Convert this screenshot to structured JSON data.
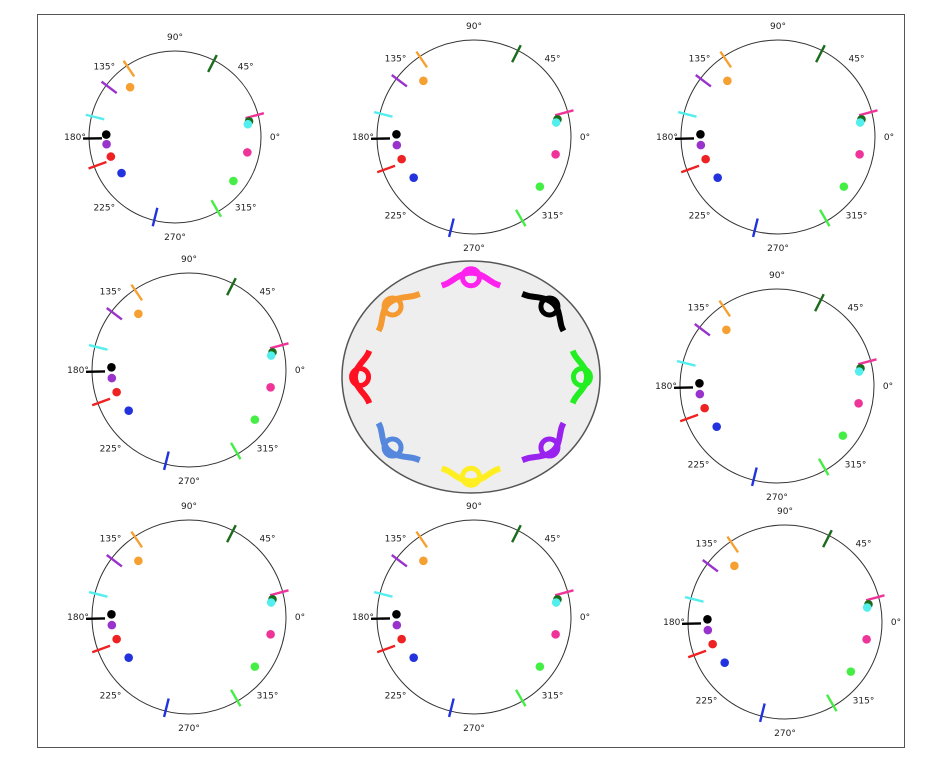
{
  "angle_labels": [
    "0°",
    "45°",
    "90°",
    "135°",
    "180°",
    "225°",
    "270°",
    "315°"
  ],
  "polar_plots": [
    {
      "id": "top-left",
      "ticks": [
        {
          "color": "#1a6b1a",
          "angle": 63
        },
        {
          "color": "#f5a030",
          "angle": 124
        },
        {
          "color": "#9933cc",
          "angle": 143
        },
        {
          "color": "#55eeee",
          "angle": 166
        },
        {
          "color": "#000000",
          "angle": 181
        },
        {
          "color": "#ee2222",
          "angle": 200
        },
        {
          "color": "#2233dd",
          "angle": 256
        },
        {
          "color": "#44ee44",
          "angle": 300
        },
        {
          "color": "#ee3399",
          "angle": 15
        }
      ],
      "dots": [
        {
          "color": "#1a6b1a",
          "angle": 12,
          "r": 0.88
        },
        {
          "color": "#55eeee",
          "angle": 10,
          "r": 0.86
        },
        {
          "color": "#ee3399",
          "angle": 348,
          "r": 0.86
        },
        {
          "color": "#44ee44",
          "angle": 323,
          "r": 0.85
        },
        {
          "color": "#2233dd",
          "angle": 214,
          "r": 0.75
        },
        {
          "color": "#ee2222",
          "angle": 197,
          "r": 0.78
        },
        {
          "color": "#9933cc",
          "angle": 186,
          "r": 0.8
        },
        {
          "color": "#000000",
          "angle": 178,
          "r": 0.8
        },
        {
          "color": "#f5a030",
          "angle": 132,
          "r": 0.78
        }
      ]
    },
    {
      "id": "top-middle",
      "ticks": [
        {
          "color": "#1a6b1a",
          "angle": 63
        },
        {
          "color": "#f5a030",
          "angle": 124
        },
        {
          "color": "#9933cc",
          "angle": 143
        },
        {
          "color": "#55eeee",
          "angle": 166
        },
        {
          "color": "#000000",
          "angle": 181
        },
        {
          "color": "#ee2222",
          "angle": 200
        },
        {
          "color": "#2233dd",
          "angle": 256
        },
        {
          "color": "#44ee44",
          "angle": 300
        },
        {
          "color": "#ee3399",
          "angle": 15
        }
      ],
      "dots": [
        {
          "color": "#1a6b1a",
          "angle": 12,
          "r": 0.88
        },
        {
          "color": "#55eeee",
          "angle": 10,
          "r": 0.86
        },
        {
          "color": "#ee3399",
          "angle": 348,
          "r": 0.86
        },
        {
          "color": "#44ee44",
          "angle": 323,
          "r": 0.85
        },
        {
          "color": "#2233dd",
          "angle": 214,
          "r": 0.75
        },
        {
          "color": "#ee2222",
          "angle": 197,
          "r": 0.78
        },
        {
          "color": "#9933cc",
          "angle": 186,
          "r": 0.8
        },
        {
          "color": "#000000",
          "angle": 178,
          "r": 0.8
        },
        {
          "color": "#f5a030",
          "angle": 132,
          "r": 0.78
        }
      ]
    },
    {
      "id": "top-right",
      "ticks": [
        {
          "color": "#1a6b1a",
          "angle": 63
        },
        {
          "color": "#f5a030",
          "angle": 124
        },
        {
          "color": "#9933cc",
          "angle": 143
        },
        {
          "color": "#55eeee",
          "angle": 166
        },
        {
          "color": "#000000",
          "angle": 181
        },
        {
          "color": "#ee2222",
          "angle": 200
        },
        {
          "color": "#2233dd",
          "angle": 256
        },
        {
          "color": "#44ee44",
          "angle": 300
        },
        {
          "color": "#ee3399",
          "angle": 15
        }
      ],
      "dots": [
        {
          "color": "#1a6b1a",
          "angle": 12,
          "r": 0.88
        },
        {
          "color": "#55eeee",
          "angle": 10,
          "r": 0.86
        },
        {
          "color": "#ee3399",
          "angle": 348,
          "r": 0.86
        },
        {
          "color": "#44ee44",
          "angle": 323,
          "r": 0.85
        },
        {
          "color": "#2233dd",
          "angle": 214,
          "r": 0.75
        },
        {
          "color": "#ee2222",
          "angle": 197,
          "r": 0.78
        },
        {
          "color": "#9933cc",
          "angle": 186,
          "r": 0.8
        },
        {
          "color": "#000000",
          "angle": 178,
          "r": 0.8
        },
        {
          "color": "#f5a030",
          "angle": 132,
          "r": 0.78
        }
      ]
    },
    {
      "id": "middle-left",
      "ticks": [
        {
          "color": "#1a6b1a",
          "angle": 63
        },
        {
          "color": "#f5a030",
          "angle": 124
        },
        {
          "color": "#9933cc",
          "angle": 143
        },
        {
          "color": "#55eeee",
          "angle": 166
        },
        {
          "color": "#000000",
          "angle": 181
        },
        {
          "color": "#ee2222",
          "angle": 200
        },
        {
          "color": "#2233dd",
          "angle": 256
        },
        {
          "color": "#44ee44",
          "angle": 300
        },
        {
          "color": "#ee3399",
          "angle": 15
        }
      ],
      "dots": [
        {
          "color": "#1a6b1a",
          "angle": 12,
          "r": 0.88
        },
        {
          "color": "#55eeee",
          "angle": 10,
          "r": 0.86
        },
        {
          "color": "#ee3399",
          "angle": 348,
          "r": 0.86
        },
        {
          "color": "#44ee44",
          "angle": 323,
          "r": 0.85
        },
        {
          "color": "#2233dd",
          "angle": 214,
          "r": 0.75
        },
        {
          "color": "#ee2222",
          "angle": 197,
          "r": 0.78
        },
        {
          "color": "#9933cc",
          "angle": 186,
          "r": 0.8
        },
        {
          "color": "#000000",
          "angle": 178,
          "r": 0.8
        },
        {
          "color": "#f5a030",
          "angle": 132,
          "r": 0.78
        }
      ]
    },
    {
      "id": "middle-right",
      "ticks": [
        {
          "color": "#1a6b1a",
          "angle": 63
        },
        {
          "color": "#f5a030",
          "angle": 124
        },
        {
          "color": "#9933cc",
          "angle": 143
        },
        {
          "color": "#55eeee",
          "angle": 166
        },
        {
          "color": "#000000",
          "angle": 181
        },
        {
          "color": "#ee2222",
          "angle": 200
        },
        {
          "color": "#2233dd",
          "angle": 256
        },
        {
          "color": "#44ee44",
          "angle": 300
        },
        {
          "color": "#ee3399",
          "angle": 15
        }
      ],
      "dots": [
        {
          "color": "#1a6b1a",
          "angle": 12,
          "r": 0.88
        },
        {
          "color": "#55eeee",
          "angle": 10,
          "r": 0.86
        },
        {
          "color": "#ee3399",
          "angle": 348,
          "r": 0.86
        },
        {
          "color": "#44ee44",
          "angle": 323,
          "r": 0.85
        },
        {
          "color": "#2233dd",
          "angle": 214,
          "r": 0.75
        },
        {
          "color": "#ee2222",
          "angle": 197,
          "r": 0.78
        },
        {
          "color": "#9933cc",
          "angle": 186,
          "r": 0.8
        },
        {
          "color": "#000000",
          "angle": 178,
          "r": 0.8
        },
        {
          "color": "#f5a030",
          "angle": 132,
          "r": 0.78
        }
      ]
    },
    {
      "id": "bottom-left",
      "ticks": [
        {
          "color": "#1a6b1a",
          "angle": 63
        },
        {
          "color": "#f5a030",
          "angle": 124
        },
        {
          "color": "#9933cc",
          "angle": 143
        },
        {
          "color": "#55eeee",
          "angle": 166
        },
        {
          "color": "#000000",
          "angle": 181
        },
        {
          "color": "#ee2222",
          "angle": 200
        },
        {
          "color": "#2233dd",
          "angle": 256
        },
        {
          "color": "#44ee44",
          "angle": 300
        },
        {
          "color": "#ee3399",
          "angle": 15
        }
      ],
      "dots": [
        {
          "color": "#1a6b1a",
          "angle": 12,
          "r": 0.88
        },
        {
          "color": "#55eeee",
          "angle": 10,
          "r": 0.86
        },
        {
          "color": "#ee3399",
          "angle": 348,
          "r": 0.86
        },
        {
          "color": "#44ee44",
          "angle": 323,
          "r": 0.85
        },
        {
          "color": "#2233dd",
          "angle": 214,
          "r": 0.75
        },
        {
          "color": "#ee2222",
          "angle": 197,
          "r": 0.78
        },
        {
          "color": "#9933cc",
          "angle": 186,
          "r": 0.8
        },
        {
          "color": "#000000",
          "angle": 178,
          "r": 0.8
        },
        {
          "color": "#f5a030",
          "angle": 132,
          "r": 0.78
        }
      ]
    },
    {
      "id": "bottom-middle",
      "ticks": [
        {
          "color": "#1a6b1a",
          "angle": 63
        },
        {
          "color": "#f5a030",
          "angle": 124
        },
        {
          "color": "#9933cc",
          "angle": 143
        },
        {
          "color": "#55eeee",
          "angle": 166
        },
        {
          "color": "#000000",
          "angle": 181
        },
        {
          "color": "#ee2222",
          "angle": 200
        },
        {
          "color": "#2233dd",
          "angle": 256
        },
        {
          "color": "#44ee44",
          "angle": 300
        },
        {
          "color": "#ee3399",
          "angle": 15
        }
      ],
      "dots": [
        {
          "color": "#1a6b1a",
          "angle": 12,
          "r": 0.88
        },
        {
          "color": "#55eeee",
          "angle": 10,
          "r": 0.86
        },
        {
          "color": "#ee3399",
          "angle": 348,
          "r": 0.86
        },
        {
          "color": "#44ee44",
          "angle": 323,
          "r": 0.85
        },
        {
          "color": "#2233dd",
          "angle": 214,
          "r": 0.75
        },
        {
          "color": "#ee2222",
          "angle": 197,
          "r": 0.78
        },
        {
          "color": "#9933cc",
          "angle": 186,
          "r": 0.8
        },
        {
          "color": "#000000",
          "angle": 178,
          "r": 0.8
        },
        {
          "color": "#f5a030",
          "angle": 132,
          "r": 0.78
        }
      ]
    },
    {
      "id": "bottom-right",
      "ticks": [
        {
          "color": "#1a6b1a",
          "angle": 63
        },
        {
          "color": "#f5a030",
          "angle": 124
        },
        {
          "color": "#9933cc",
          "angle": 143
        },
        {
          "color": "#55eeee",
          "angle": 166
        },
        {
          "color": "#000000",
          "angle": 181
        },
        {
          "color": "#ee2222",
          "angle": 200
        },
        {
          "color": "#2233dd",
          "angle": 256
        },
        {
          "color": "#44ee44",
          "angle": 300
        },
        {
          "color": "#ee3399",
          "angle": 15
        }
      ],
      "dots": [
        {
          "color": "#1a6b1a",
          "angle": 12,
          "r": 0.88
        },
        {
          "color": "#55eeee",
          "angle": 10,
          "r": 0.86
        },
        {
          "color": "#ee3399",
          "angle": 348,
          "r": 0.86
        },
        {
          "color": "#44ee44",
          "angle": 323,
          "r": 0.85
        },
        {
          "color": "#2233dd",
          "angle": 214,
          "r": 0.75
        },
        {
          "color": "#ee2222",
          "angle": 197,
          "r": 0.78
        },
        {
          "color": "#9933cc",
          "angle": 186,
          "r": 0.8
        },
        {
          "color": "#000000",
          "angle": 178,
          "r": 0.8
        },
        {
          "color": "#f5a030",
          "angle": 132,
          "r": 0.78
        }
      ]
    }
  ],
  "center_oval": {
    "fill": "#eeeeee",
    "knots": [
      {
        "color": "#ff22ee",
        "angle": 90
      },
      {
        "color": "#000000",
        "angle": 45
      },
      {
        "color": "#22ee22",
        "angle": 0
      },
      {
        "color": "#9922ee",
        "angle": 315
      },
      {
        "color": "#ffee22",
        "angle": 270
      },
      {
        "color": "#5588dd",
        "angle": 225
      },
      {
        "color": "#ff1122",
        "angle": 180
      },
      {
        "color": "#f59a30",
        "angle": 135
      }
    ]
  }
}
